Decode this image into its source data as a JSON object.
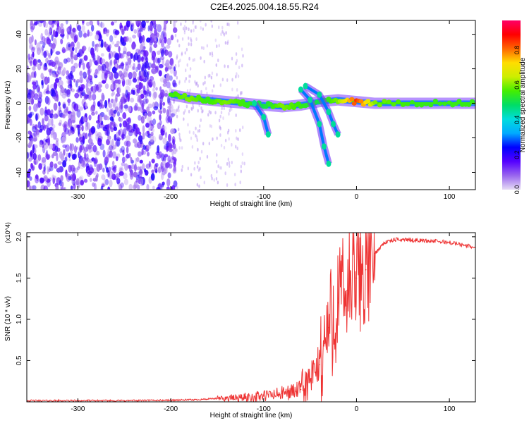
{
  "title": "C2E4.2025.004.18.55.R24",
  "chart_data": [
    {
      "type": "heatmap",
      "xlabel": "Height of straight line (km)",
      "ylabel": "Frequency (Hz)",
      "xlim": [
        -355,
        128
      ],
      "ylim": [
        -50,
        48
      ],
      "xticks": [
        -300,
        -200,
        -100,
        0,
        100
      ],
      "yticks": [
        -40,
        -20,
        0,
        20,
        40
      ],
      "colorbar": {
        "label": "Normalized spectral amplitude",
        "range": [
          0,
          0.97
        ],
        "ticks": [
          0.0,
          0.2,
          0.4,
          0.6,
          0.8
        ],
        "colormap": [
          "#e6dcf5",
          "#9966ee",
          "#5500ff",
          "#0000ff",
          "#00aaff",
          "#00dddd",
          "#00dd66",
          "#44ee00",
          "#ccee00",
          "#ffdd00",
          "#ff6600",
          "#ff0000",
          "#ff0066"
        ]
      },
      "noise_region_x": [
        -355,
        -195
      ],
      "main_trace": [
        {
          "x": -200,
          "f": 5,
          "a": 0.55
        },
        {
          "x": -180,
          "f": 3,
          "a": 0.6
        },
        {
          "x": -160,
          "f": 2,
          "a": 0.55
        },
        {
          "x": -140,
          "f": 1,
          "a": 0.6
        },
        {
          "x": -120,
          "f": 0,
          "a": 0.55
        },
        {
          "x": -100,
          "f": -1,
          "a": 0.5
        },
        {
          "x": -80,
          "f": -2,
          "a": 0.6
        },
        {
          "x": -60,
          "f": -1,
          "a": 0.55
        },
        {
          "x": -40,
          "f": 1,
          "a": 0.5
        },
        {
          "x": -20,
          "f": 2,
          "a": 0.6
        },
        {
          "x": 0,
          "f": 1,
          "a": 0.85
        },
        {
          "x": 20,
          "f": 0,
          "a": 0.6
        },
        {
          "x": 60,
          "f": 0,
          "a": 0.55
        },
        {
          "x": 100,
          "f": 0,
          "a": 0.55
        },
        {
          "x": 128,
          "f": 0,
          "a": 0.55
        }
      ],
      "side_traces": [
        {
          "points": [
            {
              "x": -110,
              "f": 0
            },
            {
              "x": -100,
              "f": -8
            },
            {
              "x": -95,
              "f": -18
            }
          ]
        },
        {
          "points": [
            {
              "x": -60,
              "f": 8
            },
            {
              "x": -50,
              "f": 2
            },
            {
              "x": -40,
              "f": -12
            },
            {
              "x": -35,
              "f": -25
            },
            {
              "x": -30,
              "f": -35
            }
          ]
        },
        {
          "points": [
            {
              "x": -55,
              "f": 10
            },
            {
              "x": -40,
              "f": 5
            },
            {
              "x": -30,
              "f": -5
            },
            {
              "x": -25,
              "f": -12
            },
            {
              "x": -20,
              "f": -18
            }
          ]
        }
      ]
    },
    {
      "type": "line",
      "xlabel": "Height of straight line (km)",
      "ylabel": "SNR (10 * v/v)",
      "multiplier": "(x10^4)",
      "xlim": [
        -355,
        128
      ],
      "ylim": [
        0,
        2.05
      ],
      "xticks": [
        -300,
        -200,
        -100,
        0,
        100
      ],
      "yticks": [
        0.5,
        1.0,
        1.5,
        2.0
      ],
      "color": "#ee3333",
      "x": [
        -355,
        -300,
        -250,
        -200,
        -175,
        -150,
        -125,
        -100,
        -80,
        -60,
        -50,
        -40,
        -30,
        -20,
        -10,
        0,
        10,
        20,
        30,
        40,
        50,
        60,
        80,
        100,
        115,
        128
      ],
      "y": [
        0.015,
        0.015,
        0.015,
        0.02,
        0.025,
        0.04,
        0.05,
        0.07,
        0.1,
        0.15,
        0.25,
        0.45,
        0.9,
        1.2,
        1.35,
        1.5,
        1.6,
        1.8,
        1.93,
        1.96,
        1.97,
        1.96,
        1.95,
        1.93,
        1.9,
        1.87
      ]
    }
  ]
}
